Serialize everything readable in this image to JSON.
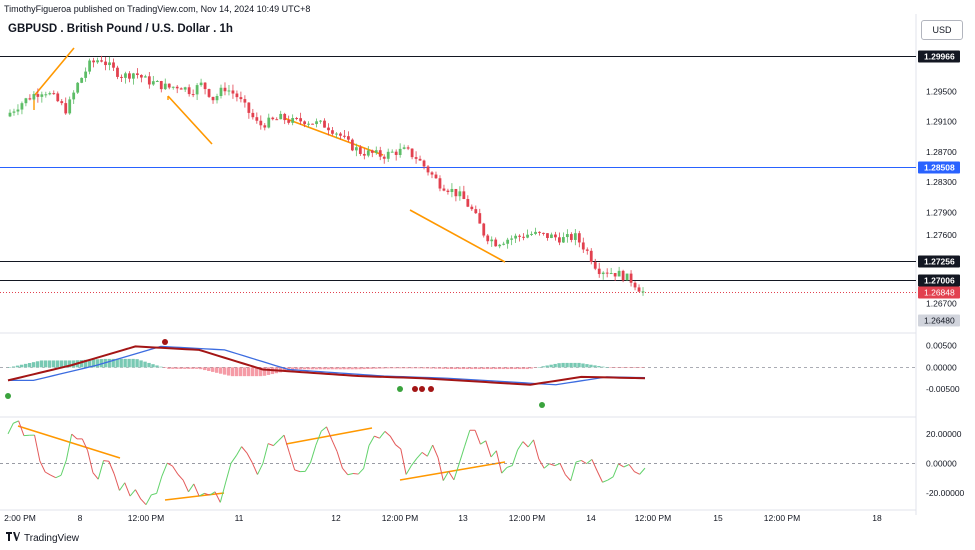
{
  "header": {
    "published_text": "TimothyFigueroa published on TradingView.com, Nov 14, 2024 10:49 UTC+8",
    "symbol_title": "GBPUSD . British Pound / U.S. Dollar . 1h",
    "currency_button": "USD"
  },
  "footer": {
    "brand": "TradingView",
    "logo": "tradingview-logo-icon"
  },
  "colors": {
    "up": "#5dbd67",
    "down": "#e2414f",
    "hline": "#131722",
    "blue_line": "#2962ff",
    "trend": "#ff9800",
    "macd_line": "#3c6ce0",
    "signal_up": "#3aa33d",
    "signal_down": "#a31515",
    "hist_up": "#78c9b3",
    "hist_down": "#f59ba6",
    "osc_up": "#62d26b",
    "osc_down": "#e35a5a"
  },
  "chart_data": [
    {
      "type": "candlestick",
      "title": "GBPUSD . British Pound / U.S. Dollar . 1h",
      "price_axis_ticks": [
        "1.29500",
        "1.29100",
        "1.28700",
        "1.28300",
        "1.27900",
        "1.27600",
        "1.26700"
      ],
      "levels": [
        {
          "label": "1.29966",
          "value": 1.29966,
          "style": "black"
        },
        {
          "label": "1.28508",
          "value": 1.28508,
          "style": "blue"
        },
        {
          "label": "1.27256",
          "value": 1.27256,
          "style": "black"
        },
        {
          "label": "1.27006",
          "value": 1.27006,
          "style": "black"
        }
      ],
      "last_price": {
        "label": "1.26848",
        "value": 1.26848
      },
      "low_marker": {
        "label": "1.26480",
        "value": 1.2648
      },
      "x_axis_labels": [
        "2:00 PM",
        "8",
        "12:00 PM",
        "11",
        "12",
        "12:00 PM",
        "13",
        "12:00 PM",
        "14",
        "12:00 PM",
        "15",
        "12:00 PM",
        "18"
      ],
      "close_path": [
        1.2922,
        1.2935,
        1.2945,
        1.2952,
        1.294,
        1.2925,
        1.296,
        1.2985,
        1.2994,
        1.298,
        1.297,
        1.2975,
        1.2965,
        1.296,
        1.2955,
        1.2958,
        1.295,
        1.296,
        1.294,
        1.2955,
        1.2945,
        1.2925,
        1.2905,
        1.291,
        1.2915,
        1.291,
        1.2912,
        1.2908,
        1.2905,
        1.2895,
        1.288,
        1.287,
        1.2868,
        1.2865,
        1.287,
        1.2872,
        1.2862,
        1.2845,
        1.2828,
        1.282,
        1.281,
        1.279,
        1.276,
        1.275,
        1.2755,
        1.2758,
        1.2762,
        1.276,
        1.2758,
        1.2755,
        1.2758,
        1.274,
        1.2715,
        1.2712,
        1.2708,
        1.27,
        1.2685
      ]
    },
    {
      "type": "line",
      "name": "MACD panel",
      "axis_ticks": [
        "0.00500",
        "0.00000",
        "-0.00500"
      ],
      "ylim": [
        -0.0075,
        0.0065
      ]
    },
    {
      "type": "line",
      "name": "Oscillator panel",
      "axis_ticks": [
        "20.00000",
        "0.00000",
        "-20.00000"
      ],
      "ylim": [
        -28,
        28
      ]
    }
  ]
}
